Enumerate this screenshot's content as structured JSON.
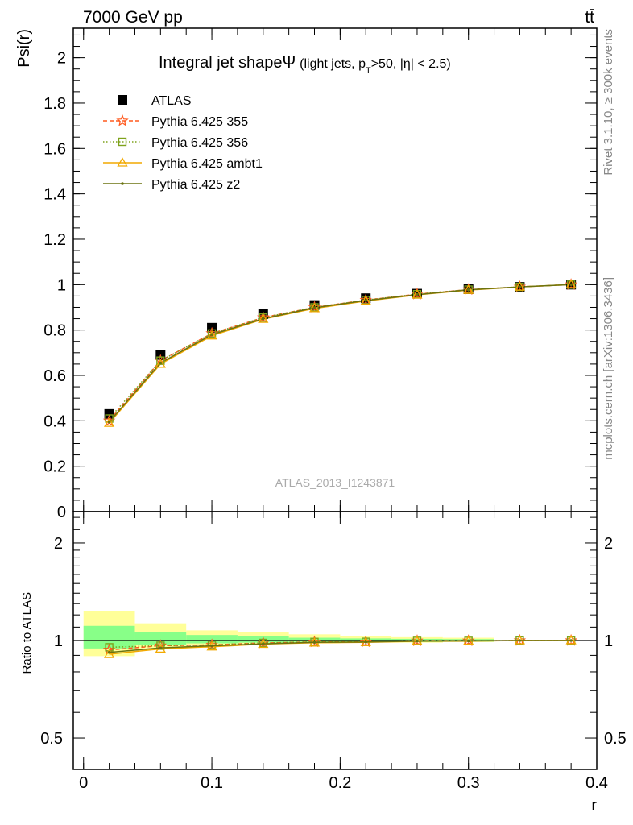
{
  "header": {
    "left": "7000 GeV pp",
    "right": "tt̄"
  },
  "side_labels": {
    "rivet": "Rivet 3.1.10, ≥ 300k events",
    "mcplots": "mcplots.cern.ch [arXiv:1306.3436]"
  },
  "chart_data": [
    {
      "type": "line",
      "panel": "main",
      "title_main": "Integral jet shape",
      "title_symbol": "Ψ",
      "title_sub_a": "(light jets, p",
      "title_sub_sub": "T",
      "title_sub_b": ">50, |η| < 2.5)",
      "ylabel": "Psi(r)",
      "xlabel": "r",
      "xlim": [
        -0.008,
        0.4
      ],
      "ylim": [
        0,
        2.13
      ],
      "xticks": [
        0,
        0.1,
        0.2,
        0.3,
        0.4
      ],
      "xtick_labels": [
        "0",
        "0.1",
        "0.2",
        "0.3",
        "0.4"
      ],
      "yticks": [
        0,
        0.2,
        0.4,
        0.6,
        0.8,
        1,
        1.2,
        1.4,
        1.6,
        1.8,
        2
      ],
      "ytick_labels": [
        "0",
        "0.2",
        "0.4",
        "0.6",
        "0.8",
        "1",
        "1.2",
        "1.4",
        "1.6",
        "1.8",
        "2"
      ],
      "watermark": "ATLAS_2013_I1243871",
      "x": [
        0.02,
        0.06,
        0.1,
        0.14,
        0.18,
        0.22,
        0.26,
        0.3,
        0.34,
        0.38
      ],
      "data": {
        "name": "ATLAS",
        "values": [
          0.43,
          0.69,
          0.81,
          0.87,
          0.91,
          0.94,
          0.96,
          0.98,
          0.99,
          1.0
        ]
      },
      "series": [
        {
          "name": "Pythia 6.425 355",
          "color": "#ff5a1f",
          "marker": "star",
          "dash": "5,3",
          "values": [
            0.4,
            0.665,
            0.785,
            0.855,
            0.9,
            0.932,
            0.958,
            0.978,
            0.99,
            1.0
          ]
        },
        {
          "name": "Pythia 6.425 356",
          "color": "#7ea21b",
          "marker": "square",
          "dash": "1.5,2.5",
          "values": [
            0.41,
            0.665,
            0.785,
            0.855,
            0.9,
            0.932,
            0.958,
            0.978,
            0.99,
            1.0
          ]
        },
        {
          "name": "Pythia 6.425 ambt1",
          "color": "#f2a900",
          "marker": "triangle",
          "dash": "",
          "values": [
            0.39,
            0.65,
            0.775,
            0.848,
            0.895,
            0.928,
            0.955,
            0.976,
            0.99,
            1.0
          ]
        },
        {
          "name": "Pythia 6.425 z2",
          "color": "#6b7310",
          "marker": "dot",
          "dash": "",
          "values": [
            0.395,
            0.655,
            0.78,
            0.85,
            0.898,
            0.93,
            0.956,
            0.977,
            0.99,
            1.0
          ]
        }
      ]
    },
    {
      "type": "line",
      "panel": "ratio",
      "ylabel": "Ratio to ATLAS",
      "xlabel": "r",
      "ylog": true,
      "ylim": [
        0.4,
        2.5
      ],
      "yticks": [
        0.5,
        1,
        2
      ],
      "ytick_labels": [
        "0.5",
        "1",
        "2"
      ],
      "bands": {
        "edges": [
          0,
          0.04,
          0.08,
          0.12,
          0.16,
          0.2,
          0.24,
          0.28,
          0.32
        ],
        "green": [
          [
            0.945,
            1.11
          ],
          [
            0.97,
            1.065
          ],
          [
            0.98,
            1.04
          ],
          [
            0.985,
            1.03
          ],
          [
            0.99,
            1.02
          ],
          [
            0.99,
            1.015
          ],
          [
            0.99,
            1.012
          ],
          [
            0.992,
            1.01
          ]
        ],
        "yellow": [
          [
            0.895,
            1.23
          ],
          [
            0.945,
            1.13
          ],
          [
            0.965,
            1.075
          ],
          [
            0.975,
            1.06
          ],
          [
            0.98,
            1.045
          ],
          [
            0.985,
            1.03
          ],
          [
            0.985,
            1.024
          ],
          [
            0.99,
            1.02
          ]
        ]
      },
      "series": [
        {
          "name": "Pythia 6.425 355",
          "values": [
            0.935,
            0.964,
            0.969,
            0.983,
            0.99,
            0.991,
            0.998,
            0.998,
            1.0,
            1.0
          ]
        },
        {
          "name": "Pythia 6.425 356",
          "values": [
            0.953,
            0.964,
            0.969,
            0.983,
            0.99,
            0.991,
            0.998,
            0.998,
            1.0,
            1.0
          ]
        },
        {
          "name": "Pythia 6.425 ambt1",
          "values": [
            0.907,
            0.942,
            0.957,
            0.975,
            0.984,
            0.987,
            0.995,
            0.996,
            1.0,
            1.0
          ]
        },
        {
          "name": "Pythia 6.425 z2",
          "values": [
            0.919,
            0.949,
            0.963,
            0.977,
            0.987,
            0.989,
            0.996,
            0.997,
            1.0,
            1.0
          ]
        }
      ]
    }
  ]
}
